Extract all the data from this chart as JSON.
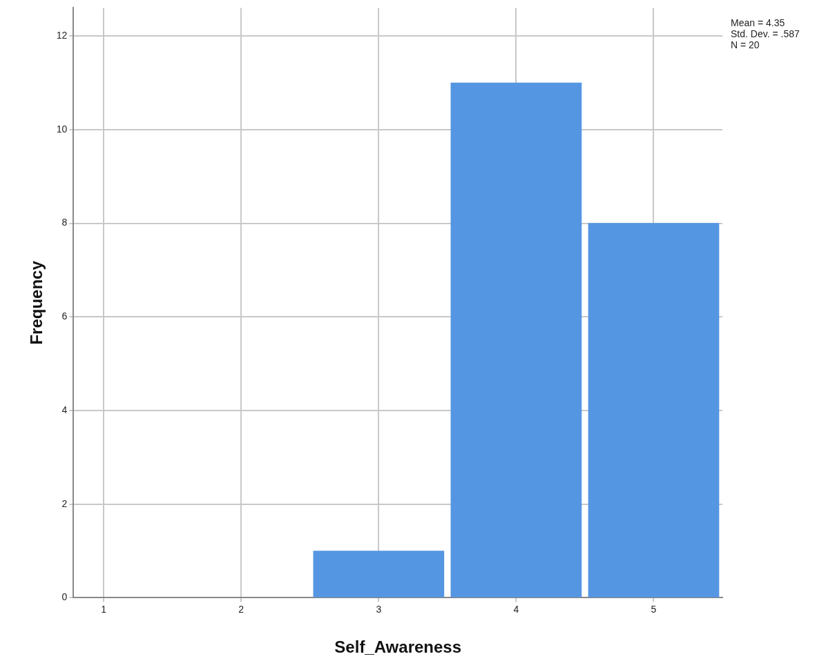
{
  "chart_data": {
    "type": "histogram",
    "xlabel": "Self_Awareness",
    "ylabel": "Frequency",
    "bins": [
      2.5,
      3.5,
      4.5,
      5.5
    ],
    "values": [
      1,
      11,
      8
    ],
    "color": "#5596e3",
    "xlim": [
      0.78,
      5.5
    ],
    "xticks": [
      1,
      2,
      3,
      4,
      5
    ],
    "ylim": [
      0,
      12.6
    ],
    "yticks": [
      0,
      2,
      4,
      6,
      8,
      10,
      12
    ],
    "grid": true,
    "annotations": [
      "Mean = 4.35",
      "Std. Dev. = .587",
      "N = 20"
    ]
  }
}
